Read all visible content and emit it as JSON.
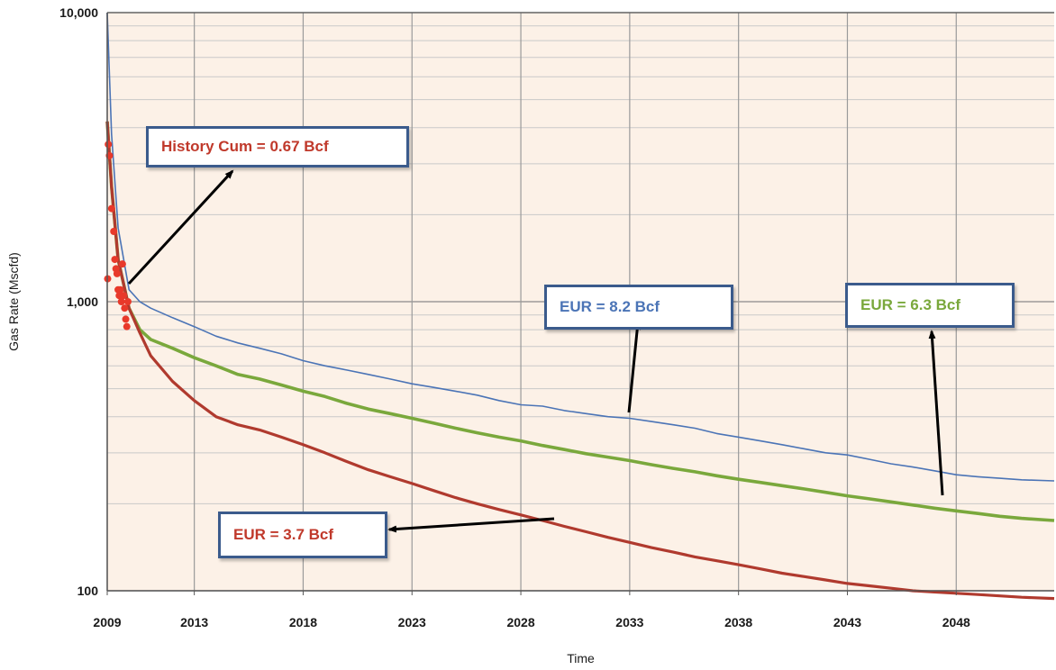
{
  "chart_data": {
    "type": "line",
    "xlabel": "Time",
    "ylabel": "Gas Rate (Mscfd)",
    "yscale": "log",
    "ylim": [
      100,
      10000
    ],
    "xlim": [
      2009,
      2052.5
    ],
    "x_ticks": [
      "2009",
      "2013",
      "2018",
      "2023",
      "2028",
      "2033",
      "2038",
      "2043",
      "2048"
    ],
    "y_ticks": [
      "100",
      "1,000",
      "10,000"
    ],
    "grid": true,
    "plot_background": "#fcf1e7",
    "series": [
      {
        "color": "#4b74b6",
        "x": [
          2009,
          2009.2,
          2009.5,
          2010,
          2010.5,
          2011,
          2012,
          2013,
          2014,
          2015,
          2016,
          2017,
          2018,
          2019,
          2020,
          2021,
          2022,
          2023,
          2024,
          2025,
          2026,
          2027,
          2028,
          2029,
          2030,
          2031,
          2032,
          2033,
          2034,
          2035,
          2036,
          2037,
          2038,
          2039,
          2040,
          2041,
          2042,
          2043,
          2044,
          2045,
          2046,
          2047,
          2048,
          2049,
          2050,
          2051,
          2052.5
        ],
        "values": [
          10000,
          3800,
          1800,
          1100,
          1000,
          950,
          880,
          820,
          760,
          720,
          690,
          660,
          625,
          600,
          580,
          560,
          540,
          520,
          505,
          490,
          475,
          455,
          440,
          435,
          420,
          410,
          400,
          395,
          385,
          375,
          365,
          350,
          340,
          330,
          320,
          310,
          300,
          295,
          285,
          275,
          268,
          260,
          252,
          248,
          245,
          242,
          240
        ]
      },
      {
        "color": "#7aa83c",
        "x": [
          2009,
          2009.2,
          2009.5,
          2010,
          2010.5,
          2011,
          2012,
          2013,
          2014,
          2015,
          2016,
          2017,
          2018,
          2019,
          2020,
          2021,
          2022,
          2023,
          2024,
          2025,
          2026,
          2027,
          2028,
          2029,
          2030,
          2031,
          2032,
          2033,
          2034,
          2035,
          2036,
          2037,
          2038,
          2039,
          2040,
          2041,
          2042,
          2043,
          2044,
          2045,
          2046,
          2047,
          2048,
          2049,
          2050,
          2051,
          2052.5
        ],
        "values": [
          4200,
          2500,
          1400,
          950,
          800,
          740,
          690,
          640,
          600,
          560,
          540,
          515,
          490,
          470,
          445,
          425,
          410,
          395,
          380,
          365,
          352,
          340,
          330,
          318,
          308,
          298,
          290,
          282,
          273,
          265,
          258,
          250,
          243,
          237,
          231,
          225,
          219,
          213,
          208,
          203,
          198,
          193,
          189,
          185,
          181,
          178,
          175
        ]
      },
      {
        "color": "#b03a2e",
        "x": [
          2009,
          2009.2,
          2009.5,
          2010,
          2010.5,
          2011,
          2012,
          2013,
          2014,
          2015,
          2016,
          2017,
          2018,
          2019,
          2020,
          2021,
          2022,
          2023,
          2024,
          2025,
          2026,
          2027,
          2028,
          2029,
          2030,
          2031,
          2032,
          2033,
          2034,
          2035,
          2036,
          2037,
          2038,
          2039,
          2040,
          2041,
          2042,
          2043,
          2044,
          2045,
          2046,
          2047,
          2048,
          2049,
          2050,
          2051,
          2052.5
        ],
        "values": [
          4200,
          2500,
          1400,
          950,
          780,
          650,
          530,
          455,
          400,
          375,
          360,
          340,
          320,
          300,
          280,
          262,
          248,
          235,
          222,
          210,
          200,
          191,
          183,
          175,
          167,
          160,
          153,
          147,
          141,
          136,
          131,
          127,
          123,
          119,
          115,
          112,
          109,
          106,
          104,
          102,
          100,
          99,
          98,
          97,
          96,
          95,
          94
        ]
      }
    ],
    "history_points": {
      "color": "#e8392a",
      "x": [
        2009.05,
        2009.1,
        2009.2,
        2009.3,
        2009.35,
        2009.4,
        2009.45,
        2009.5,
        2009.55,
        2009.6,
        2009.65,
        2009.7,
        2009.75,
        2009.8,
        2009.85,
        2009.9,
        2009.95,
        2009.02
      ],
      "values": [
        3500,
        3200,
        2100,
        1750,
        1400,
        1300,
        1250,
        1100,
        1050,
        1100,
        1000,
        1350,
        1050,
        950,
        870,
        820,
        1000,
        1200
      ]
    },
    "annotations": [
      {
        "text": "History Cum = 0.67 Bcf",
        "color": "#c0392b"
      },
      {
        "text": "EUR = 8.2 Bcf",
        "color": "#4b74b6"
      },
      {
        "text": "EUR = 6.3 Bcf",
        "color": "#7aa83c"
      },
      {
        "text": "EUR = 3.7 Bcf",
        "color": "#c0392b"
      }
    ]
  }
}
